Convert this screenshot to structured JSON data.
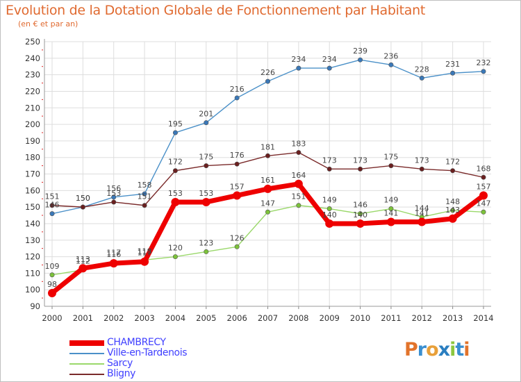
{
  "title": "Evolution de la Dotation Globale de Fonctionnement par Habitant",
  "subtitle": "(en € et par an)",
  "logo": {
    "text": "Proxiti",
    "letter_colors": [
      "#e2732b",
      "#3a8fd0",
      "#e8a03a",
      "#2a7ec0",
      "#8cc63f",
      "#3a8fd0",
      "#e2732b"
    ]
  },
  "colors": {
    "title": "#e06a30",
    "legend_text": "#4040ff",
    "grid": "#dddddd",
    "axis_marks": "#dd2222"
  },
  "chart_data": {
    "type": "line",
    "title": "Evolution de la Dotation Globale de Fonctionnement par Habitant",
    "subtitle": "(en € et par an)",
    "xlabel": "",
    "ylabel": "",
    "x": [
      2000,
      2001,
      2002,
      2003,
      2004,
      2005,
      2006,
      2007,
      2008,
      2009,
      2010,
      2011,
      2012,
      2013,
      2014
    ],
    "ylim": [
      90,
      250
    ],
    "yticks": [
      90,
      100,
      110,
      120,
      130,
      140,
      150,
      160,
      170,
      180,
      190,
      200,
      210,
      220,
      230,
      240,
      250
    ],
    "grid": true,
    "legend_placement": "bottom-left",
    "series": [
      {
        "name": "Ville-en-Tardenois",
        "color": "#4a90c8",
        "marker": "#3a78b8",
        "style": "thin",
        "values": [
          146,
          150,
          156,
          158,
          195,
          201,
          216,
          226,
          234,
          234,
          239,
          236,
          228,
          231,
          232
        ],
        "labels": [
          "146",
          "150",
          "156",
          "158",
          "195",
          "201",
          "216",
          "226",
          "234",
          "234",
          "239",
          "236",
          "228",
          "231",
          "232"
        ]
      },
      {
        "name": "Bligny",
        "color": "#7a2a2a",
        "marker": "#6a1f1f",
        "style": "thin",
        "values": [
          151,
          150,
          153,
          151,
          172,
          175,
          176,
          181,
          183,
          173,
          173,
          175,
          173,
          172,
          168
        ],
        "labels": [
          "151",
          "150",
          "153",
          "151",
          "172",
          "175",
          "176",
          "181",
          "183",
          "173",
          "173",
          "175",
          "173",
          "172",
          "168"
        ]
      },
      {
        "name": "Sarcy",
        "color": "#9ad86a",
        "marker": "#7cc23a",
        "style": "thin",
        "values": [
          109,
          112,
          117,
          118,
          120,
          123,
          126,
          147,
          151,
          149,
          146,
          149,
          144,
          148,
          147
        ],
        "labels": [
          "109",
          "112",
          "117",
          "118",
          "120",
          "123",
          "126",
          "147",
          "151",
          "149",
          "146",
          "149",
          "144",
          "148",
          "147"
        ]
      },
      {
        "name": "CHAMBRECY",
        "color": "#ee0000",
        "marker": "#ee0000",
        "style": "thick",
        "values": [
          98,
          113,
          116,
          117,
          153,
          153,
          157,
          161,
          164,
          140,
          140,
          141,
          141,
          143,
          157
        ],
        "labels": [
          "98",
          "113",
          "116",
          "117",
          "153",
          "153",
          "157",
          "161",
          "164",
          "140",
          "140",
          "141",
          "141",
          "143",
          "157"
        ]
      }
    ],
    "legend": [
      "CHAMBRECY",
      "Ville-en-Tardenois",
      "Sarcy",
      "Bligny"
    ]
  }
}
